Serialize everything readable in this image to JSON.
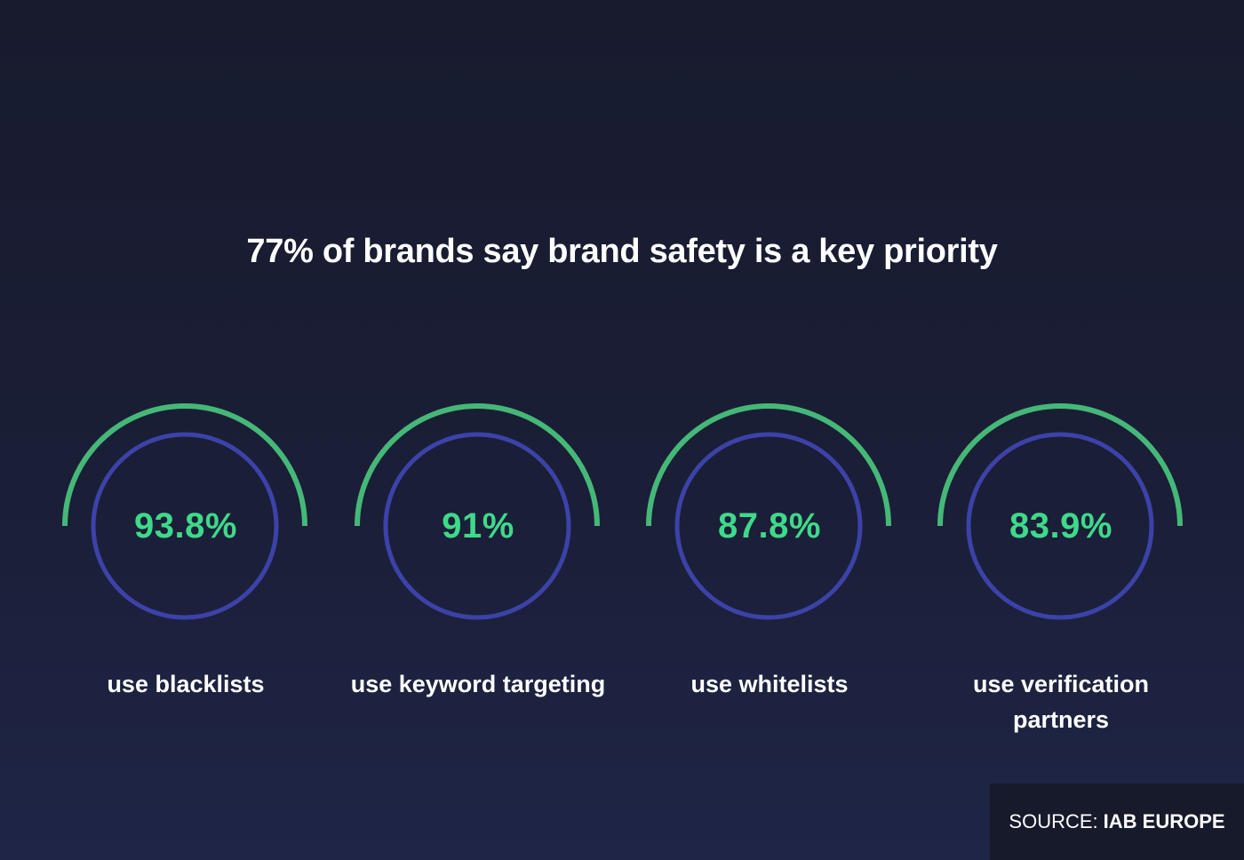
{
  "title": "77% of brands say brand safety is a key priority",
  "stats": [
    {
      "value": "93.8%",
      "label": "use blacklists",
      "percent": 93.8
    },
    {
      "value": "91%",
      "label": "use keyword targeting",
      "percent": 91
    },
    {
      "value": "87.8%",
      "label": "use whitelists",
      "percent": 87.8
    },
    {
      "value": "83.9%",
      "label": "use verification partners",
      "percent": 83.9
    }
  ],
  "source": {
    "prefix": "SOURCE:",
    "name": "IAB EUROPE"
  },
  "colors": {
    "accent_green": "#3fd98a",
    "arc_green": "#45b878",
    "ring_blue": "#3c42a8",
    "background_top": "#181b2e",
    "background_bottom": "#1f2547"
  }
}
